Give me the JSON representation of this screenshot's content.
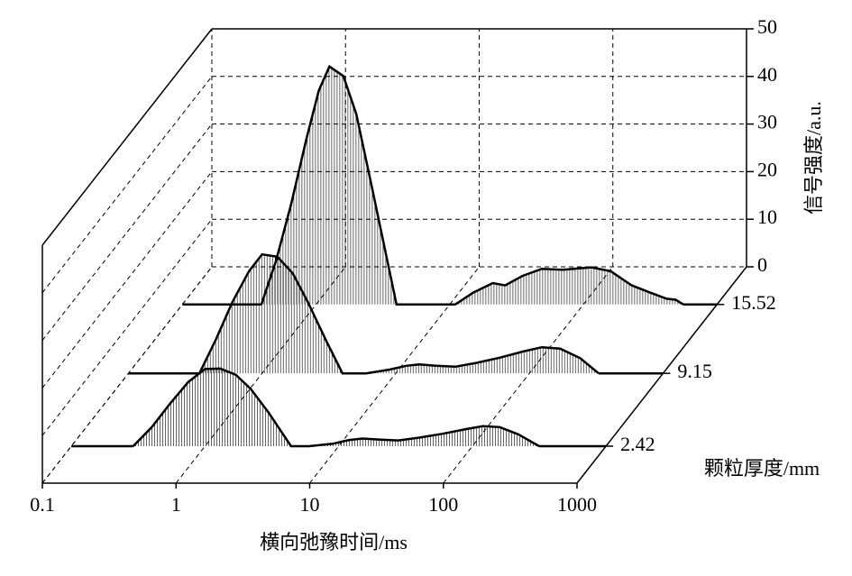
{
  "chart_data": {
    "type": "waterfall",
    "x_label": "横向弛豫时间/ms",
    "y_label": "信号强度/a.u.",
    "z_label": "颗粒厚度/mm",
    "xlog": true,
    "xlim": [
      0.1,
      1000
    ],
    "xticks": [
      0.1,
      1,
      10,
      100,
      1000
    ],
    "ylim": [
      0,
      50
    ],
    "yticks": [
      0,
      10,
      20,
      30,
      40,
      50
    ],
    "zlim": [
      -1,
      19
    ],
    "grid": true,
    "color": "#000000",
    "series": [
      {
        "z": 2.42,
        "x": [
          0.29,
          0.4,
          0.55,
          0.75,
          1.0,
          1.3,
          1.7,
          2.2,
          3.0,
          4.4,
          6,
          9,
          12,
          15,
          20,
          28,
          40,
          60,
          90,
          120,
          160,
          220,
          316
        ],
        "values": [
          0,
          4,
          9,
          13.5,
          16.2,
          16.3,
          15,
          12,
          7,
          0,
          0,
          0.5,
          1.3,
          1.6,
          1.4,
          1.2,
          1.8,
          2.6,
          3.6,
          4.2,
          4,
          2.5,
          0
        ]
      },
      {
        "z": 9.15,
        "x": [
          0.34,
          0.45,
          0.6,
          0.8,
          1.0,
          1.3,
          1.7,
          2.2,
          3.0,
          4.0,
          6,
          9,
          12,
          15,
          20,
          28,
          40,
          60,
          90,
          124,
          170,
          240,
          330
        ],
        "values": [
          0,
          7,
          15,
          21.5,
          25,
          24.5,
          21,
          15,
          7,
          0,
          0,
          0.8,
          1.6,
          1.9,
          1.6,
          1.4,
          2.2,
          3.3,
          4.6,
          5.5,
          5.2,
          3.2,
          0
        ]
      },
      {
        "z": 15.52,
        "x": [
          0.39,
          0.5,
          0.65,
          0.85,
          1.05,
          1.26,
          1.6,
          2.0,
          2.6,
          4.0,
          11,
          15,
          21,
          26,
          35,
          49,
          70,
          95,
          115,
          160,
          230,
          316,
          420,
          490,
          560
        ],
        "values": [
          0,
          9,
          21,
          35,
          45,
          50,
          48,
          40,
          25,
          0,
          0,
          2.5,
          4.5,
          4,
          6,
          7.5,
          7.3,
          7.6,
          7.8,
          7,
          4,
          2.5,
          1.2,
          1,
          0
        ]
      }
    ]
  }
}
